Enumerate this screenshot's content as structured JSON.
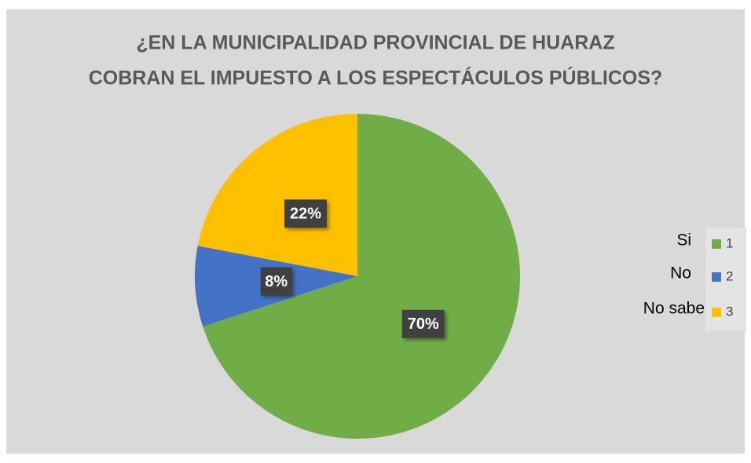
{
  "chart_data": {
    "type": "pie",
    "title": [
      "¿EN LA MUNICIPALIDAD PROVINCIAL DE HUARAZ",
      "COBRAN EL IMPUESTO A LOS ESPECTÁCULOS PÚBLICOS?"
    ],
    "categories": [
      "1",
      "2",
      "3"
    ],
    "category_labels": [
      "Si",
      "No",
      "No sabe"
    ],
    "values": [
      70,
      8,
      22
    ],
    "value_labels": [
      "70%",
      "8%",
      "22%"
    ],
    "colors": [
      "#70ad47",
      "#4472c4",
      "#ffc000"
    ],
    "legend": "right"
  }
}
